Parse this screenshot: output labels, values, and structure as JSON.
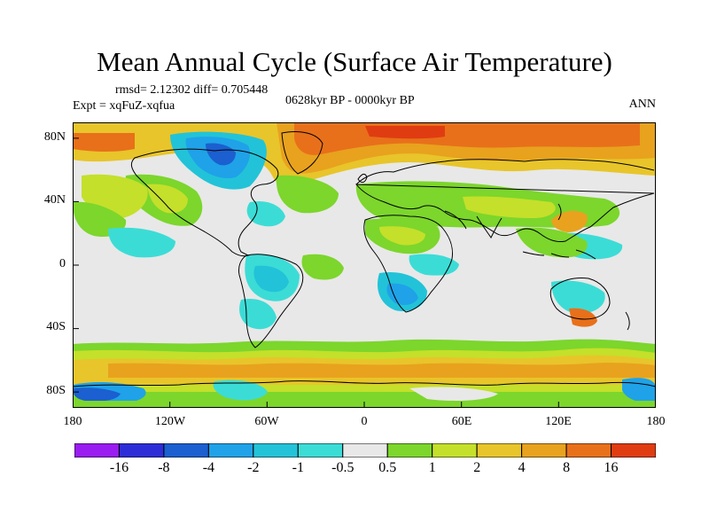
{
  "title": "Mean Annual Cycle (Surface Air Temperature)",
  "stats": "rmsd= 2.12302 diff= 0.705448",
  "experiment": "Expt = xqFuZ-xqfua",
  "period": "0628kyr BP - 0000kyr BP",
  "season": "ANN",
  "chart_data": {
    "type": "heatmap",
    "variable": "Surface Air Temperature anomaly",
    "projection": "cylindrical equidistant",
    "lon_range": [
      -180,
      180
    ],
    "lat_range": [
      -90,
      90
    ],
    "x_ticks": [
      "180",
      "120W",
      "60W",
      "0",
      "60E",
      "120E",
      "180"
    ],
    "y_ticks": [
      "80N",
      "40N",
      "0",
      "40S",
      "80S"
    ],
    "colorbar": {
      "levels": [
        "-16",
        "-8",
        "-4",
        "-2",
        "-1",
        "-0.5",
        "0.5",
        "1",
        "2",
        "4",
        "8",
        "16"
      ],
      "colors": [
        "#9a1cf0",
        "#2d2dd8",
        "#1b5fd0",
        "#1fa2e8",
        "#22c3d8",
        "#3cdcd6",
        "#e8e8e8",
        "#7cd62c",
        "#c4e02a",
        "#e8c52a",
        "#e8a21e",
        "#e8701a",
        "#e03c12"
      ]
    },
    "regions": [
      {
        "name": "Arctic / North Atlantic",
        "anomaly_class": "4 to 16"
      },
      {
        "name": "Canadian Archipelago",
        "anomaly_class": "-4 to -1"
      },
      {
        "name": "Tropical oceans",
        "anomaly_class": "-0.5 to 0.5"
      },
      {
        "name": "Southern Ocean belt",
        "anomaly_class": "1 to 8"
      },
      {
        "name": "Antarctic coast",
        "anomaly_class": "-4 to -1"
      }
    ]
  }
}
